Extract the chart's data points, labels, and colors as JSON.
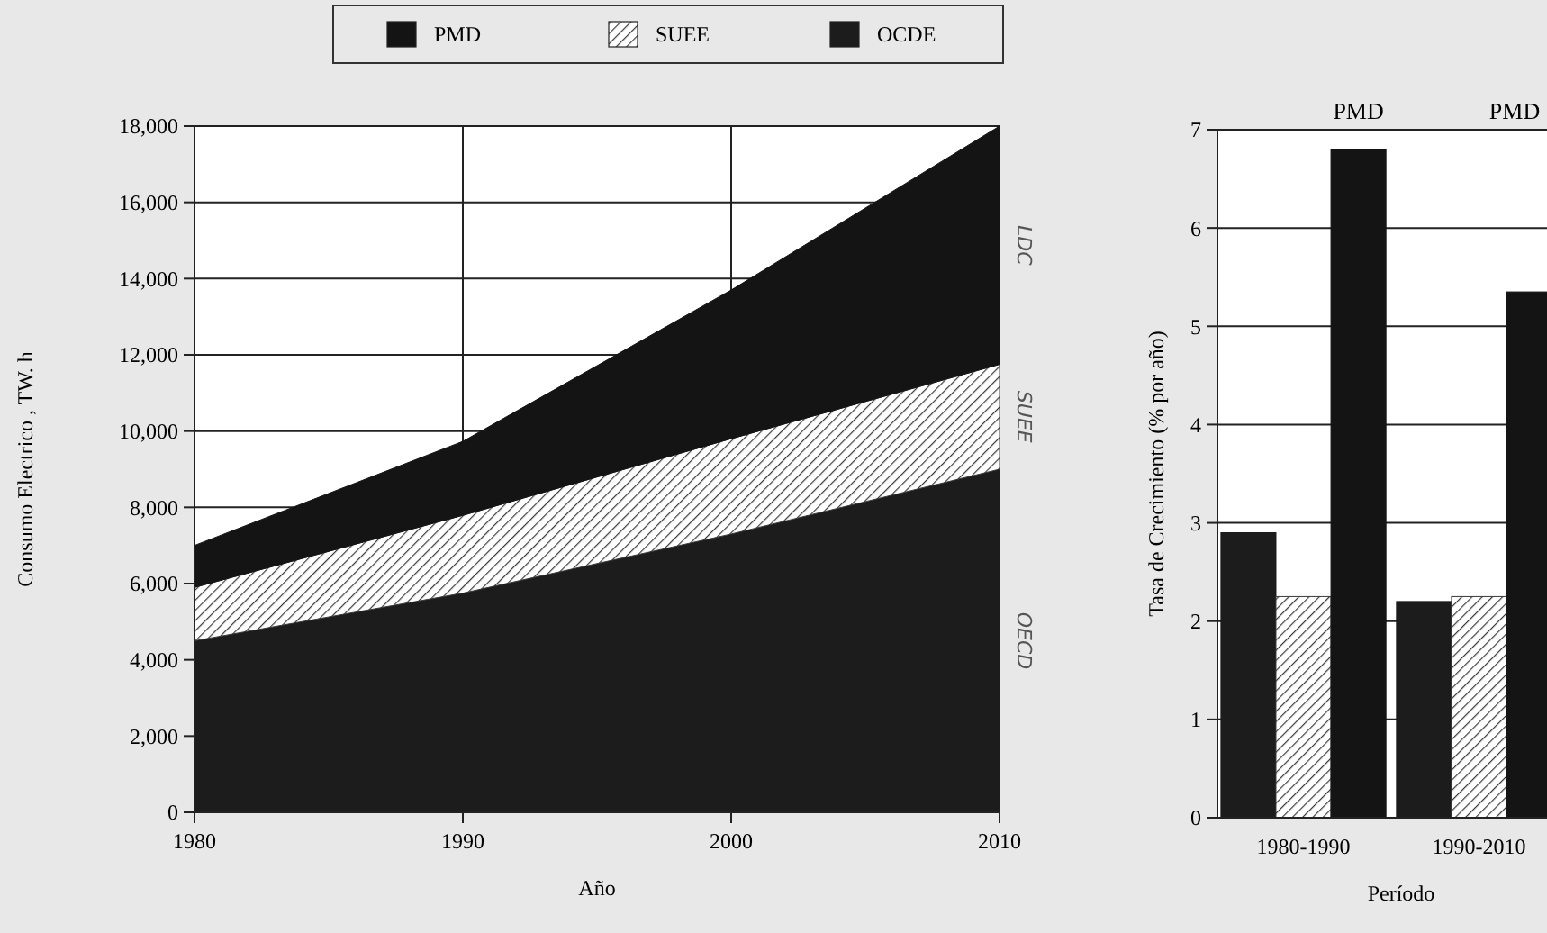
{
  "chart_data": [
    {
      "type": "area",
      "stacked": true,
      "xlabel": "Año",
      "ylabel": "Consumo Electrico , TW. h",
      "x": [
        1980,
        1990,
        2000,
        2010
      ],
      "xlim": [
        1980,
        2010
      ],
      "xticks": [
        1980,
        1990,
        2000,
        2010
      ],
      "ylim": [
        0,
        18000
      ],
      "yticks": [
        {
          "value": 0,
          "label": "0"
        },
        {
          "value": 2000,
          "label": "2,000"
        },
        {
          "value": 4000,
          "label": "4,000"
        },
        {
          "value": 6000,
          "label": "6,000"
        },
        {
          "value": 8000,
          "label": "8,000"
        },
        {
          "value": 10000,
          "label": "10,000"
        },
        {
          "value": 12000,
          "label": "12,000"
        },
        {
          "value": 14000,
          "label": "14,000"
        },
        {
          "value": 16000,
          "label": "16,000"
        },
        {
          "value": 18000,
          "label": "18,000"
        }
      ],
      "grid": true,
      "legend": "top",
      "series": [
        {
          "name": "OCDE",
          "color": "#1c1c1c",
          "values": [
            4500,
            5750,
            7300,
            9000
          ]
        },
        {
          "name": "SUEE",
          "color": "#3a3a3a",
          "values": [
            1400,
            2040,
            2500,
            2750
          ]
        },
        {
          "name": "PMD",
          "color": "#141414",
          "values": [
            1100,
            1940,
            3900,
            6250
          ]
        }
      ],
      "annotations": [
        "OECD",
        "SUEE",
        "LDC"
      ]
    },
    {
      "type": "bar",
      "xlabel": "Período",
      "ylabel": "Tasa de Crecimiento (% por año)",
      "categories": [
        "1980-1990",
        "1990-2010"
      ],
      "ylim": [
        0,
        7
      ],
      "yticks": [
        0,
        1,
        2,
        3,
        4,
        5,
        6,
        7
      ],
      "grid": "y",
      "series": [
        {
          "color": "#1c1c1c",
          "values": [
            2.9,
            2.2
          ]
        },
        {
          "color": "#3a3a3a",
          "values": [
            2.25,
            2.25
          ]
        },
        {
          "color": "#141414",
          "values": [
            6.8,
            5.35
          ]
        }
      ],
      "annotations": [
        "PMD",
        "PMD"
      ]
    }
  ]
}
